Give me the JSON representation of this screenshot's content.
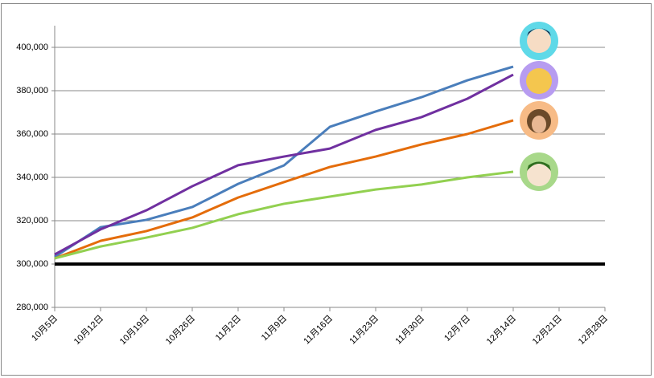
{
  "chart_data": {
    "type": "line",
    "categories": [
      "10月5日",
      "10月12日",
      "10月19日",
      "10月26日",
      "11月2日",
      "11月9日",
      "11月16日",
      "11月23日",
      "11月30日",
      "12月7日",
      "12月14日",
      "12月21日",
      "12月28日"
    ],
    "series": [
      {
        "color": "#4a7ebb",
        "values": [
          303300,
          317000,
          320400,
          326300,
          337000,
          345500,
          363300,
          370400,
          377000,
          384800,
          391100,
          null,
          null
        ]
      },
      {
        "color": "#7030a0",
        "values": [
          304400,
          316000,
          324800,
          335900,
          345600,
          349600,
          353300,
          361900,
          367800,
          376300,
          387400,
          null,
          null
        ]
      },
      {
        "color": "#e46c0a",
        "values": [
          302600,
          310700,
          315200,
          321500,
          330700,
          337800,
          344800,
          349600,
          355200,
          360000,
          366300,
          null,
          null
        ]
      },
      {
        "color": "#92d050",
        "values": [
          302600,
          308100,
          312200,
          316700,
          323000,
          327800,
          331100,
          334400,
          336700,
          340000,
          342600,
          null,
          null
        ]
      }
    ],
    "reference_line": 300000,
    "ylim": [
      280000,
      410000
    ],
    "yticks": [
      {
        "value": 280000,
        "label": "280,000"
      },
      {
        "value": 300000,
        "label": "300,000"
      },
      {
        "value": 320000,
        "label": "320,000"
      },
      {
        "value": 340000,
        "label": "340,000"
      },
      {
        "value": 360000,
        "label": "360,000"
      },
      {
        "value": 380000,
        "label": "380,000"
      },
      {
        "value": 400000,
        "label": "400,000"
      }
    ],
    "grid": true
  }
}
